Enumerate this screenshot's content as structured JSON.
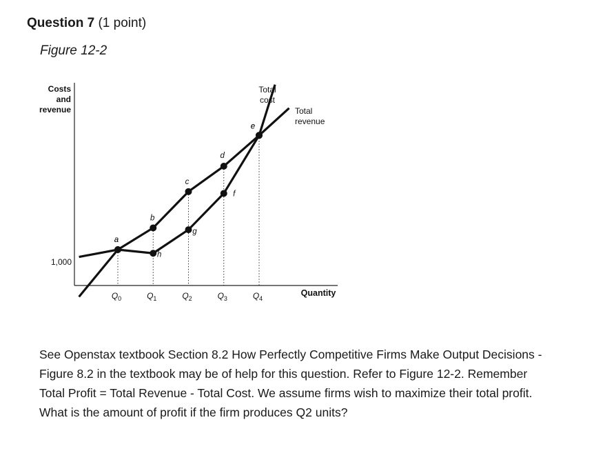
{
  "question": {
    "title": "Question 7",
    "points": "(1 point)"
  },
  "figure_title": "Figure 12-2",
  "prompt": "See Openstax textbook Section 8.2 How Perfectly Competitive Firms Make Output Decisions - Figure 8.2 in the textbook may be of help for this question. Refer to Figure 12-2. Remember Total Profit = Total Revenue - Total Cost. We assume firms wish to maximize their total profit. What is the amount of profit if the firm produces Q2 units?",
  "chart_data": {
    "type": "line",
    "ylabel": [
      "Costs",
      "and",
      "revenue"
    ],
    "xlabel": "Quantity",
    "y_ticks": [
      "1,000"
    ],
    "x_ticks": [
      {
        "base": "Q",
        "sub": "0"
      },
      {
        "base": "Q",
        "sub": "1"
      },
      {
        "base": "Q",
        "sub": "2"
      },
      {
        "base": "Q",
        "sub": "3"
      },
      {
        "base": "Q",
        "sub": "4"
      }
    ],
    "x": [
      0,
      1,
      2,
      3,
      4
    ],
    "series": [
      {
        "name": "Total revenue",
        "label_lines": [
          "Total",
          "revenue"
        ],
        "points": [
          {
            "x": -1.1,
            "y": -0.9
          },
          {
            "x": 0,
            "y": 0.4,
            "label": "a"
          },
          {
            "x": 1,
            "y": 1.0,
            "label": "b"
          },
          {
            "x": 2,
            "y": 2.0,
            "label": "c"
          },
          {
            "x": 3,
            "y": 2.7,
            "label": "d"
          },
          {
            "x": 4,
            "y": 3.55,
            "label": "e"
          },
          {
            "x": 4.85,
            "y": 4.3
          }
        ]
      },
      {
        "name": "Total cost",
        "label_lines": [
          "Total",
          "cost"
        ],
        "points": [
          {
            "x": -1.1,
            "y": 0.2
          },
          {
            "x": 0,
            "y": 0.4,
            "label": "a"
          },
          {
            "x": 1,
            "y": 0.3,
            "label": "h"
          },
          {
            "x": 2,
            "y": 0.95,
            "label": "g"
          },
          {
            "x": 3,
            "y": 1.95,
            "label": "f"
          },
          {
            "x": 4,
            "y": 3.55,
            "label": "e"
          },
          {
            "x": 4.45,
            "y": 4.95
          }
        ]
      }
    ],
    "tc_at_origin_label": "1,000"
  }
}
